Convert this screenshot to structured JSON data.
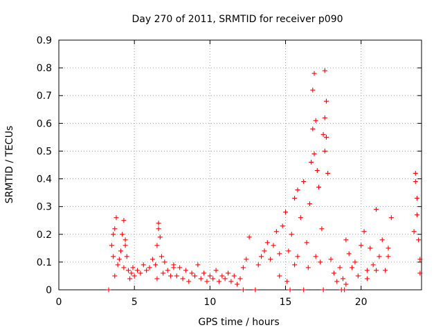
{
  "chart_data": {
    "type": "scatter",
    "title": "Day 270 of 2011, SRMTID for receiver p090",
    "xlabel": "GPS time / hours",
    "ylabel": "SRMTID / TECUs",
    "xlim": [
      0,
      24
    ],
    "ylim": [
      0,
      0.9
    ],
    "xticks": [
      "0",
      "5",
      "10",
      "15",
      "20"
    ],
    "yticks": [
      "0",
      "0.1",
      "0.2",
      "0.3",
      "0.4",
      "0.5",
      "0.6",
      "0.7",
      "0.8",
      "0.9"
    ],
    "grid": true,
    "series": [
      {
        "name": "SRMTID",
        "marker": "+",
        "color": "#ff0000",
        "x": [
          3.3,
          12.2,
          13.0,
          15.3,
          16.2,
          17.5,
          18.7,
          18.9,
          3.5,
          3.6,
          3.7,
          3.8,
          3.9,
          4.0,
          4.1,
          4.2,
          4.3,
          4.4,
          4.5,
          4.6,
          4.7,
          4.8,
          4.9,
          5.0,
          5.2,
          5.4,
          5.6,
          5.8,
          6.0,
          6.2,
          6.4,
          6.5,
          6.6,
          6.7,
          6.8,
          6.9,
          7.0,
          7.2,
          7.4,
          7.6,
          7.8,
          8.0,
          8.2,
          8.4,
          8.6,
          8.8,
          9.0,
          9.2,
          9.4,
          9.6,
          9.8,
          10.0,
          10.2,
          10.4,
          10.6,
          10.8,
          11.0,
          11.2,
          11.4,
          11.6,
          11.8,
          12.0,
          12.2,
          12.4,
          12.6,
          13.2,
          13.4,
          13.6,
          13.8,
          14.0,
          14.2,
          14.4,
          14.6,
          14.8,
          15.0,
          15.2,
          15.4,
          15.6,
          15.8,
          16.0,
          16.2,
          16.4,
          16.6,
          16.7,
          16.8,
          16.9,
          17.0,
          17.1,
          17.2,
          17.4,
          17.5,
          17.6,
          17.7,
          17.8,
          18.0,
          18.2,
          18.4,
          18.6,
          18.8,
          19.0,
          19.2,
          19.4,
          19.6,
          19.8,
          20.0,
          20.2,
          20.4,
          20.6,
          20.8,
          21.0,
          21.2,
          21.4,
          21.6,
          21.8,
          22.0,
          23.5,
          23.6,
          23.7,
          23.8,
          23.9,
          3.6,
          4.4,
          6.6,
          15.8,
          16.8,
          16.9,
          17.6,
          17.7,
          23.6,
          23.7,
          3.7,
          4.3,
          6.5,
          7.6,
          14.6,
          15.1,
          15.6,
          16.5,
          17.0,
          17.3,
          17.6,
          19.0,
          20.4,
          21.0,
          21.8,
          23.9
        ],
        "y": [
          0,
          0,
          0,
          0,
          0,
          0,
          0,
          0,
          0.16,
          0.12,
          0.22,
          0.26,
          0.09,
          0.11,
          0.14,
          0.2,
          0.25,
          0.18,
          0.12,
          0.07,
          0.04,
          0.06,
          0.08,
          0.05,
          0.07,
          0.06,
          0.09,
          0.07,
          0.08,
          0.11,
          0.09,
          0.16,
          0.24,
          0.19,
          0.12,
          0.06,
          0.1,
          0.07,
          0.05,
          0.09,
          0.05,
          0.08,
          0.04,
          0.07,
          0.03,
          0.06,
          0.05,
          0.09,
          0.04,
          0.06,
          0.03,
          0.05,
          0.04,
          0.07,
          0.03,
          0.05,
          0.04,
          0.06,
          0.03,
          0.05,
          0.02,
          0.04,
          0.08,
          0.11,
          0.19,
          0.09,
          0.12,
          0.14,
          0.17,
          0.11,
          0.16,
          0.21,
          0.13,
          0.23,
          0.28,
          0.14,
          0.2,
          0.09,
          0.12,
          0.26,
          0.39,
          0.17,
          0.31,
          0.46,
          0.58,
          0.78,
          0.61,
          0.43,
          0.37,
          0.22,
          0.56,
          0.79,
          0.68,
          0.42,
          0.11,
          0.06,
          0.03,
          0.08,
          0.04,
          0.18,
          0.13,
          0.08,
          0.1,
          0.05,
          0.16,
          0.21,
          0.07,
          0.15,
          0.09,
          0.29,
          0.12,
          0.18,
          0.07,
          0.15,
          0.26,
          0.21,
          0.42,
          0.33,
          0.18,
          0.11,
          0.2,
          0.16,
          0.22,
          0.36,
          0.72,
          0.49,
          0.62,
          0.55,
          0.39,
          0.27,
          0.05,
          0.08,
          0.04,
          0.08,
          0.05,
          0.03,
          0.33,
          0.08,
          0.12,
          0.1,
          0.5,
          0.02,
          0.04,
          0.07,
          0.12,
          0.06
        ]
      }
    ]
  }
}
